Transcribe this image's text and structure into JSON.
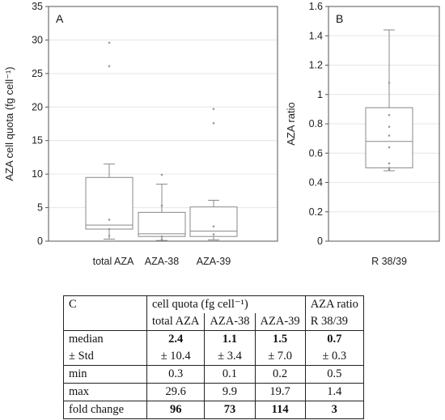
{
  "chart_data": [
    {
      "type": "box",
      "panel": "A",
      "ylabel": "AZA cell quota (fg cell⁻¹)",
      "ylim": [
        0,
        35
      ],
      "yticks": [
        0,
        5,
        10,
        15,
        20,
        25,
        30,
        35
      ],
      "grid": true,
      "categories": [
        "total AZA",
        "AZA-38",
        "AZA-39"
      ],
      "boxes": [
        {
          "name": "total AZA",
          "whisker_low": 0.3,
          "q1": 1.8,
          "median": 2.4,
          "q3": 9.5,
          "whisker_high": 11.5,
          "points": [
            29.6,
            26.1,
            3.2,
            1.8,
            0.8
          ]
        },
        {
          "name": "AZA-38",
          "whisker_low": 0.1,
          "q1": 0.7,
          "median": 1.1,
          "q3": 4.3,
          "whisker_high": 8.5,
          "points": [
            9.9,
            5.3,
            0.7,
            0.3
          ]
        },
        {
          "name": "AZA-39",
          "whisker_low": 0.2,
          "q1": 0.7,
          "median": 1.5,
          "q3": 5.1,
          "whisker_high": 6.1,
          "points": [
            19.7,
            17.6,
            2.2,
            1.0
          ]
        }
      ]
    },
    {
      "type": "box",
      "panel": "B",
      "ylabel": "AZA ratio",
      "ylim": [
        0,
        1.6
      ],
      "yticks": [
        0,
        0.2,
        0.4,
        0.6,
        0.8,
        1,
        1.2,
        1.4,
        1.6
      ],
      "grid": true,
      "categories": [
        "R 38/39"
      ],
      "boxes": [
        {
          "name": "R 38/39",
          "whisker_low": 0.48,
          "q1": 0.5,
          "median": 0.68,
          "q3": 0.91,
          "whisker_high": 1.44,
          "points": [
            1.08,
            0.86,
            0.78,
            0.72,
            0.64,
            0.53,
            0.5,
            0.49
          ]
        }
      ]
    }
  ],
  "table": {
    "panel": "C",
    "group_header": "cell quota (fg cell⁻¹)",
    "ratio_header": "AZA ratio",
    "columns": [
      "total AZA",
      "AZA-38",
      "AZA-39",
      "R 38/39"
    ],
    "rows": [
      {
        "label": "median",
        "values": [
          "2.4",
          "1.1",
          "1.5",
          "0.7"
        ]
      },
      {
        "label": "± Std",
        "values": [
          "± 10.4",
          "± 3.4",
          "± 7.0",
          "± 0.3"
        ]
      },
      {
        "label": "min",
        "values": [
          "0.3",
          "0.1",
          "0.2",
          "0.5"
        ]
      },
      {
        "label": "max",
        "values": [
          "29.6",
          "9.9",
          "19.7",
          "1.4"
        ]
      },
      {
        "label": "fold change",
        "values": [
          "96",
          "73",
          "114",
          "3"
        ]
      }
    ]
  },
  "colors": {
    "axis": "#555555",
    "box": "#888888",
    "grid": "#e6e6e6",
    "point": "#999999"
  }
}
